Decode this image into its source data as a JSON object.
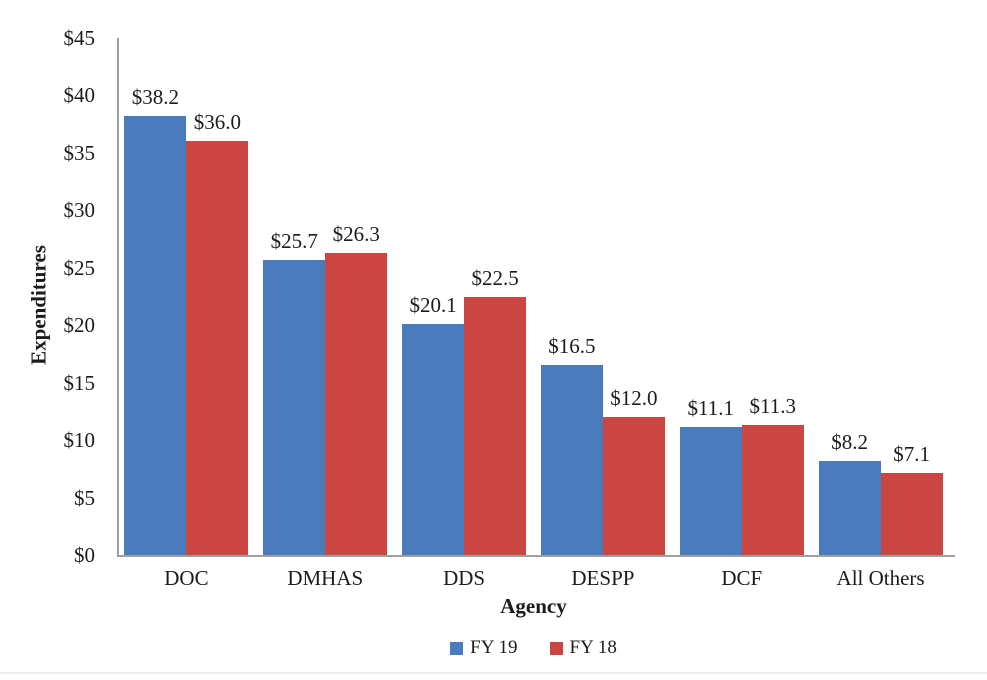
{
  "chart_data": {
    "type": "bar",
    "title": "",
    "categories": [
      "DOC",
      "DMHAS",
      "DDS",
      "DESPP",
      "DCF",
      "All Others"
    ],
    "series": [
      {
        "name": "FY 19",
        "color": "#4a7cbd",
        "values": [
          38.2,
          25.7,
          20.1,
          16.5,
          11.1,
          8.2
        ],
        "value_labels": [
          "$38.2",
          "$25.7",
          "$20.1",
          "$16.5",
          "$11.1",
          "$8.2"
        ]
      },
      {
        "name": "FY 18",
        "color": "#cb4542",
        "values": [
          36.0,
          26.3,
          22.5,
          12.0,
          11.3,
          7.1
        ],
        "value_labels": [
          "$36.0",
          "$26.3",
          "$22.5",
          "$12.0",
          "$11.3",
          "$7.1"
        ]
      }
    ],
    "xlabel": "Agency",
    "ylabel": "Expenditures",
    "ylim": [
      0,
      45
    ],
    "ytick_step": 5,
    "ytick_labels": [
      "$0",
      "$5",
      "$10",
      "$15",
      "$20",
      "$25",
      "$30",
      "$35",
      "$40",
      "$45"
    ],
    "grid": false,
    "legend_position": "bottom",
    "bar_orientation": "vertical",
    "data_labels_shown": true
  },
  "legend": {
    "items": [
      {
        "label": "FY 19",
        "color": "#4a7cbd"
      },
      {
        "label": "FY 18",
        "color": "#cb4542"
      }
    ]
  },
  "axis_color": "#a0a0a0"
}
